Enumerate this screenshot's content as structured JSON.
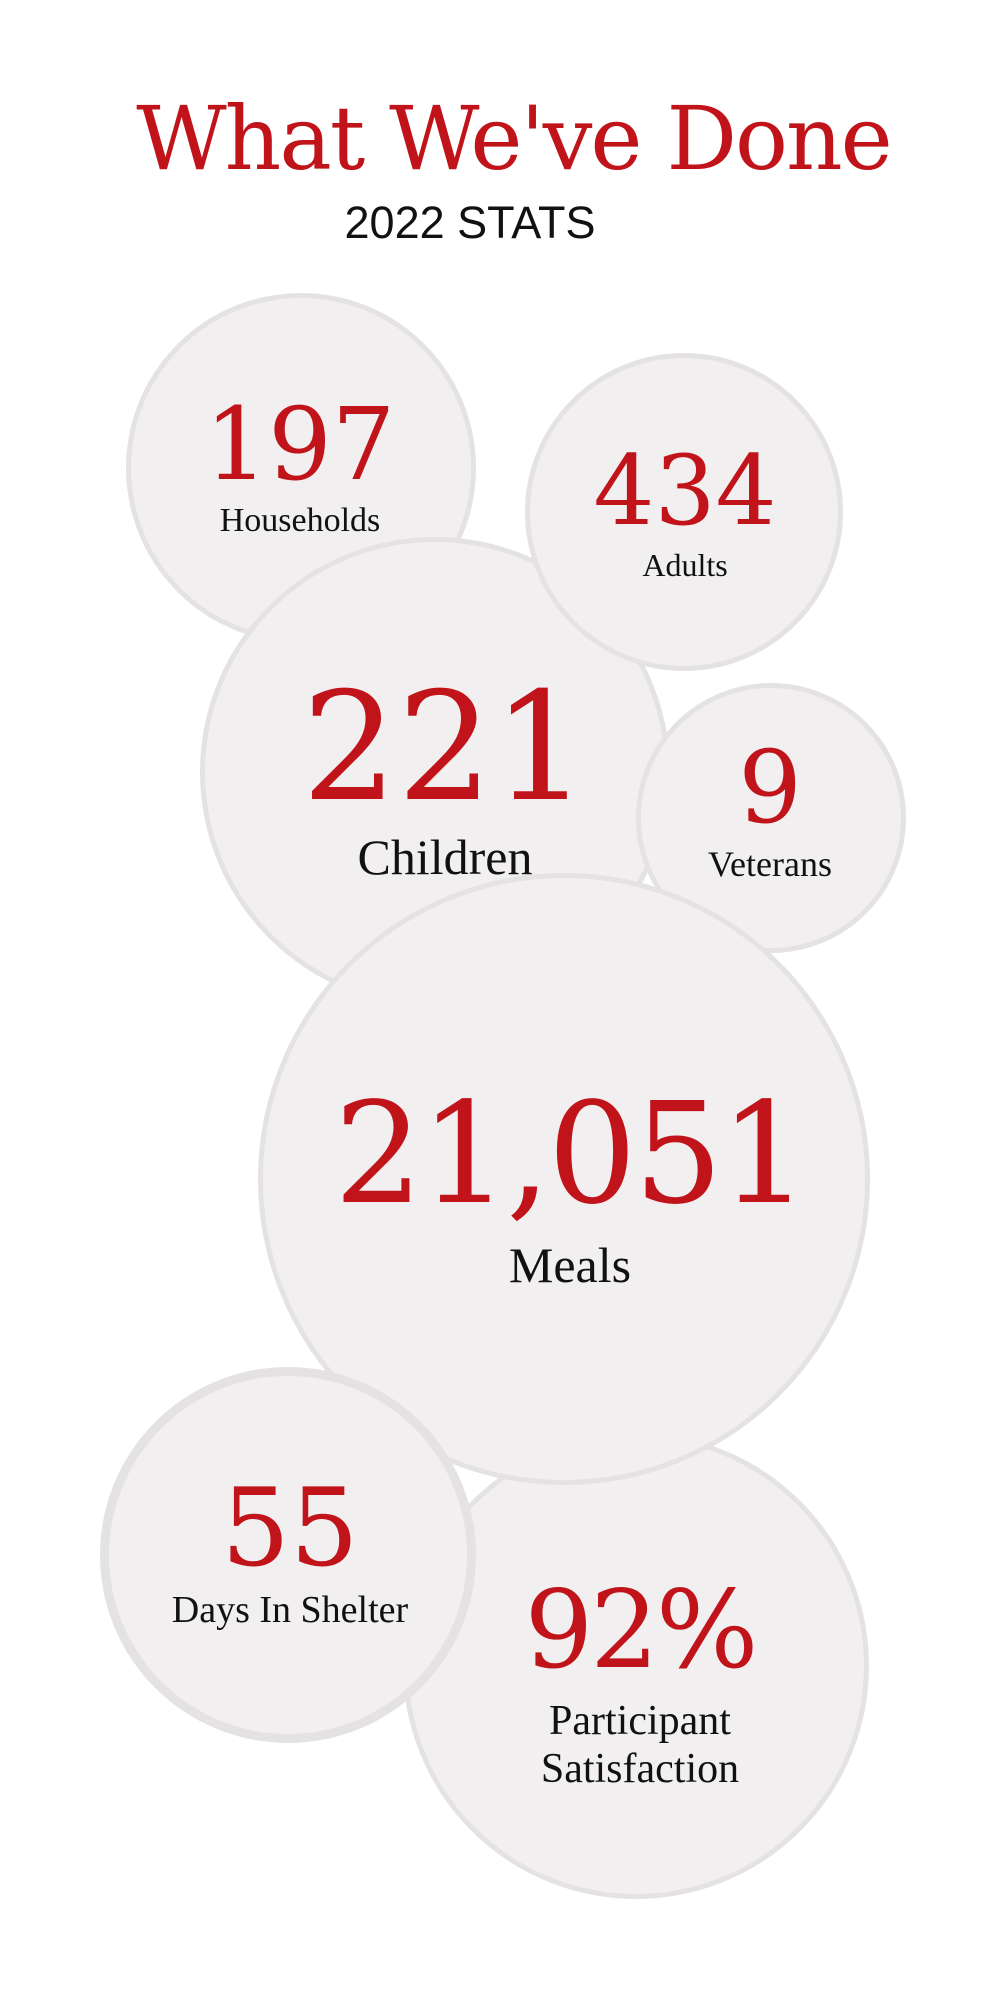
{
  "header": {
    "title": "What We've Done",
    "subtitle": "2022 STATS"
  },
  "stats": {
    "households": {
      "value": "197",
      "label": "Households"
    },
    "adults": {
      "value": "434",
      "label": "Adults"
    },
    "children": {
      "value": "221",
      "label": "Children"
    },
    "veterans": {
      "value": "9",
      "label": "Veterans"
    },
    "meals": {
      "value": "21,051",
      "label": "Meals"
    },
    "days_in_shelter": {
      "value": "55",
      "label": "Days In Shelter"
    },
    "participant_satisfaction": {
      "value": "92%",
      "label_line1": "Participant",
      "label_line2": "Satisfaction"
    }
  },
  "colors": {
    "accent": "#c1141a",
    "bubble_fill": "#f1eff0",
    "bubble_border": "#e5e2e3",
    "text": "#111111"
  }
}
